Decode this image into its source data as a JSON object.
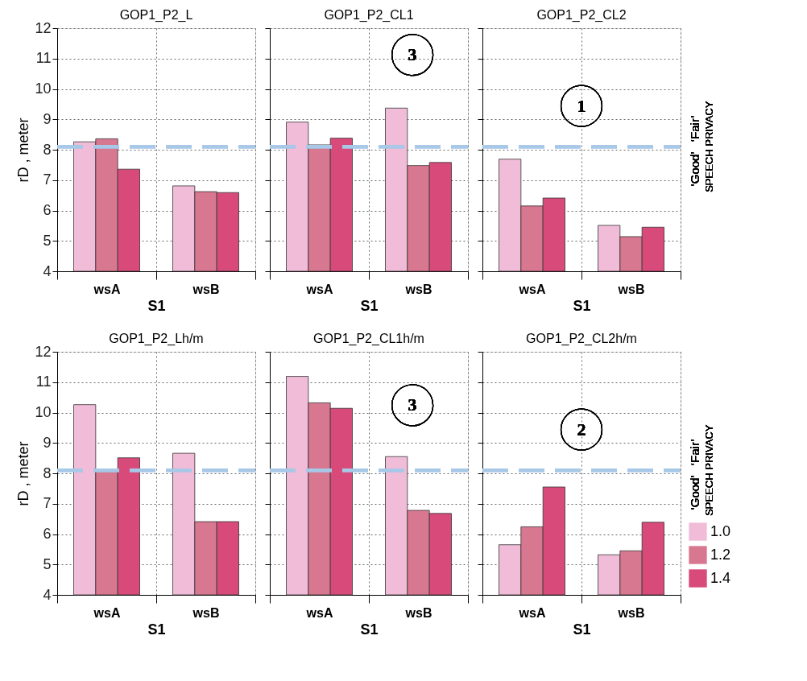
{
  "chart_data": [
    {
      "type": "bar",
      "title": "GOP1_P2_L",
      "xlabel": "S1",
      "ylabel": "rD , meter",
      "categories": [
        "wsA",
        "wsB"
      ],
      "series": [
        {
          "color": "#f0bcd8",
          "values": [
            8.26,
            6.81
          ]
        },
        {
          "color": "#d87890",
          "values": [
            8.36,
            6.62
          ]
        },
        {
          "color": "#d84a7a",
          "values": [
            7.36,
            6.59
          ]
        }
      ],
      "ylim": [
        4,
        12
      ],
      "yticks": [
        4,
        5,
        6,
        7,
        8,
        9,
        10,
        11,
        12
      ],
      "grid": true,
      "ref_lines": [
        {
          "axis": "y",
          "value": 8.1,
          "color": "#a8c8e8",
          "line_style": "dashed"
        }
      ]
    },
    {
      "type": "bar",
      "title": "GOP1_P2_CL1",
      "xlabel": "S1",
      "categories": [
        "wsA",
        "wsB"
      ],
      "series": [
        {
          "color": "#f0bcd8",
          "values": [
            8.91,
            9.37
          ]
        },
        {
          "color": "#d87890",
          "values": [
            8.16,
            7.48
          ]
        },
        {
          "color": "#d84a7a",
          "values": [
            8.38,
            7.58
          ]
        }
      ],
      "ylim": [
        4,
        12
      ],
      "yticks": [
        4,
        5,
        6,
        7,
        8,
        9,
        10,
        11,
        12
      ],
      "grid": true,
      "tick_labels": "x",
      "ref_lines": [
        {
          "axis": "y",
          "value": 8.1,
          "color": "#a8c8e8",
          "line_style": "dashed"
        }
      ],
      "annotations": [
        "3"
      ]
    },
    {
      "type": "bar",
      "title": "GOP1_P2_CL2",
      "xlabel": "S1",
      "categories": [
        "wsA",
        "wsB"
      ],
      "series": [
        {
          "color": "#f0bcd8",
          "values": [
            7.69,
            5.51
          ]
        },
        {
          "color": "#d87890",
          "values": [
            6.15,
            5.14
          ]
        },
        {
          "color": "#d84a7a",
          "values": [
            6.41,
            5.45
          ]
        }
      ],
      "ylim": [
        4,
        12
      ],
      "yticks": [
        4,
        5,
        6,
        7,
        8,
        9,
        10,
        11,
        12
      ],
      "grid": true,
      "tick_labels": "x",
      "ref_lines": [
        {
          "axis": "y",
          "value": 8.1,
          "color": "#a8c8e8",
          "line_style": "dashed",
          "label": "SPEECH PRIVACY"
        }
      ],
      "annotations": [
        "1",
        "‘Good’",
        "‘Fair’"
      ]
    },
    {
      "type": "bar",
      "title": "GOP1_P2_Lh/m",
      "xlabel": "S1",
      "ylabel": "rD , meter",
      "categories": [
        "wsA",
        "wsB"
      ],
      "series": [
        {
          "color": "#f0bcd8",
          "values": [
            10.26,
            8.66
          ]
        },
        {
          "color": "#d87890",
          "values": [
            8.12,
            6.41
          ]
        },
        {
          "color": "#d84a7a",
          "values": [
            8.51,
            6.41
          ]
        }
      ],
      "ylim": [
        4,
        12
      ],
      "yticks": [
        4,
        5,
        6,
        7,
        8,
        9,
        10,
        11,
        12
      ],
      "grid": true,
      "ref_lines": [
        {
          "axis": "y",
          "value": 8.1,
          "color": "#a8c8e8",
          "line_style": "dashed"
        }
      ]
    },
    {
      "type": "bar",
      "title": "GOP1_P2_CL1h/m",
      "xlabel": "S1",
      "categories": [
        "wsA",
        "wsB"
      ],
      "series": [
        {
          "color": "#f0bcd8",
          "values": [
            11.19,
            8.55
          ]
        },
        {
          "color": "#d87890",
          "values": [
            10.32,
            6.78
          ]
        },
        {
          "color": "#d84a7a",
          "values": [
            10.14,
            6.68
          ]
        }
      ],
      "ylim": [
        4,
        12
      ],
      "yticks": [
        4,
        5,
        6,
        7,
        8,
        9,
        10,
        11,
        12
      ],
      "grid": true,
      "tick_labels": "x",
      "ref_lines": [
        {
          "axis": "y",
          "value": 8.1,
          "color": "#a8c8e8",
          "line_style": "dashed"
        }
      ],
      "annotations": [
        "3"
      ]
    },
    {
      "type": "bar",
      "title": "GOP1_P2_CL2h/m",
      "xlabel": "S1",
      "categories": [
        "wsA",
        "wsB"
      ],
      "series": [
        {
          "name": "1.0",
          "color": "#f0bcd8",
          "values": [
            5.65,
            5.32
          ]
        },
        {
          "name": "1.2",
          "color": "#d87890",
          "values": [
            6.24,
            5.45
          ]
        },
        {
          "name": "1.4",
          "color": "#d84a7a",
          "values": [
            7.55,
            6.39
          ]
        }
      ],
      "ylim": [
        4,
        12
      ],
      "yticks": [
        4,
        5,
        6,
        7,
        8,
        9,
        10,
        11,
        12
      ],
      "grid": true,
      "tick_labels": "x",
      "legend": "bottom right",
      "ref_lines": [
        {
          "axis": "y",
          "value": 8.1,
          "color": "#a8c8e8",
          "line_style": "dashed",
          "label": "SPEECH PRIVACY"
        }
      ],
      "annotations": [
        "2",
        "‘Good’",
        "‘Fair’"
      ]
    }
  ]
}
